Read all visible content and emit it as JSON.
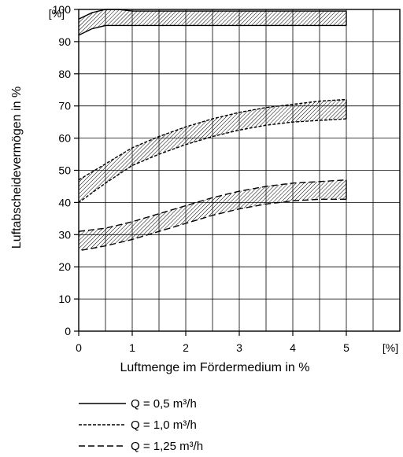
{
  "chart_data": {
    "type": "area",
    "title": "",
    "xlabel": "Luftmenge im Fördermedium in %",
    "ylabel": "Luftabscheidevermögen in %",
    "x_unit_label": "[%]",
    "y_unit_label": "[%]",
    "xlim": [
      0,
      6
    ],
    "ylim": [
      0,
      100
    ],
    "x_ticks": [
      "0",
      "1",
      "2",
      "3",
      "4",
      "5"
    ],
    "y_ticks": [
      "0",
      "10",
      "20",
      "30",
      "40",
      "50",
      "60",
      "70",
      "80",
      "90",
      "100"
    ],
    "grid": true,
    "bands": [
      {
        "legend": "Q = 0,5 m³/h",
        "line_style": "solid",
        "x": [
          0,
          0.25,
          0.5,
          0.75,
          1,
          2,
          3,
          4,
          5
        ],
        "upper": [
          97,
          99,
          100,
          100,
          99.5,
          99.5,
          99.5,
          99.5,
          99.5
        ],
        "lower": [
          92,
          94,
          95,
          95,
          95,
          95,
          95,
          95,
          95
        ]
      },
      {
        "legend": "Q = 1,0 m³/h",
        "line_style": "dashed",
        "x": [
          0,
          0.5,
          1,
          1.5,
          2,
          2.5,
          3,
          3.5,
          4,
          4.5,
          5
        ],
        "upper": [
          47,
          52,
          57,
          60.5,
          63.5,
          66,
          68,
          69.5,
          70.5,
          71.5,
          72
        ],
        "lower": [
          40,
          46,
          51.5,
          55,
          58,
          60.5,
          62.5,
          64,
          65,
          65.5,
          66
        ]
      },
      {
        "legend": "Q = 1,25 m³/h",
        "line_style": "long-dashed",
        "x": [
          0,
          0.5,
          1,
          1.5,
          2,
          2.5,
          3,
          3.5,
          4,
          4.5,
          5
        ],
        "upper": [
          31,
          32,
          34,
          36.5,
          39,
          41.5,
          43.5,
          45,
          46,
          46.5,
          47
        ],
        "lower": [
          25,
          26.5,
          28.5,
          31,
          33.5,
          36,
          38,
          39.5,
          40.5,
          41,
          41
        ]
      }
    ],
    "legend_entries": [
      {
        "style": "solid",
        "text": "Q = 0,5 m³/h"
      },
      {
        "style": "dashed",
        "text": "Q = 1,0 m³/h"
      },
      {
        "style": "long-dashed",
        "text": "Q = 1,25 m³/h"
      }
    ],
    "legend_position": "bottom-left"
  }
}
